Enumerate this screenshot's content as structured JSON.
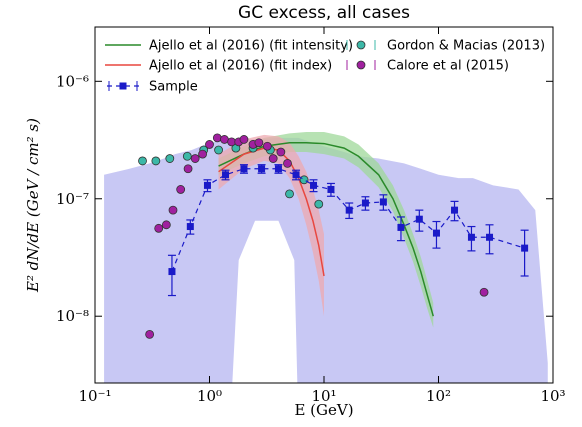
{
  "chart_data": {
    "type": "line",
    "title": "GC excess, all cases",
    "x_label": "E (GeV)",
    "y_label": "E² dN/dE  (GeV / cm² s)",
    "log_x": true,
    "log_y": true,
    "xlim": [
      0.1,
      1000
    ],
    "ylim": [
      2.7e-09,
      2.9e-06
    ],
    "xticks": [
      {
        "value": 0.1,
        "label": "10⁻¹"
      },
      {
        "value": 1,
        "label": "10⁰"
      },
      {
        "value": 10,
        "label": "10¹"
      },
      {
        "value": 100,
        "label": "10²"
      },
      {
        "value": 1000,
        "label": "10³"
      }
    ],
    "yticks": [
      {
        "value": 1e-08,
        "label": "10⁻⁸"
      },
      {
        "value": 1e-07,
        "label": "10⁻⁷"
      },
      {
        "value": 1e-06,
        "label": "10⁻⁶"
      }
    ],
    "legend": "upper left",
    "background_band": {
      "color": "#c8c8f4",
      "x": [
        0.12,
        0.2,
        0.3,
        0.4,
        0.5,
        0.7,
        1,
        1.5,
        1.8,
        2.5,
        4,
        5.5,
        6,
        8,
        10,
        15,
        20,
        30,
        50,
        70,
        100,
        150,
        200,
        300,
        500,
        700,
        900
      ],
      "upper": [
        1.6e-07,
        1.8e-07,
        2e-07,
        2.2e-07,
        2.4e-07,
        2.6e-07,
        3e-07,
        3.2e-07,
        3.2e-07,
        3.2e-07,
        3.3e-07,
        3.3e-07,
        3.3e-07,
        3e-07,
        2.8e-07,
        2.5e-07,
        2.3e-07,
        2.2e-07,
        2e-07,
        1.8e-07,
        1.6e-07,
        1.5e-07,
        1.5e-07,
        1.3e-07,
        1.2e-07,
        8e-08,
        4e-09
      ],
      "lower": [
        1e-09,
        1e-09,
        1e-09,
        1e-09,
        1e-09,
        1e-09,
        1e-09,
        1e-09,
        3e-08,
        6.5e-08,
        6.5e-08,
        3e-08,
        1e-09,
        1e-09,
        1e-09,
        1e-09,
        1e-09,
        1e-09,
        1e-09,
        1e-09,
        1e-09,
        1e-09,
        1e-09,
        1e-09,
        1e-09,
        1e-09,
        1e-09
      ]
    },
    "series": [
      {
        "name": "Ajello et al (2016) (fit intensity)",
        "color": "#2a8a2a",
        "band_color": "#9fd89a",
        "x": [
          1.2,
          2,
          3,
          5,
          7,
          10,
          15,
          20,
          30,
          40,
          50,
          60,
          70,
          80,
          90
        ],
        "values": [
          1.9e-07,
          2.4e-07,
          2.8e-07,
          3e-07,
          3e-07,
          2.95e-07,
          2.7e-07,
          2.3e-07,
          1.6e-07,
          1e-07,
          6e-08,
          3.8e-08,
          2.4e-08,
          1.5e-08,
          1e-08
        ],
        "lower": [
          1.6e-07,
          2e-07,
          2.3e-07,
          2.5e-07,
          2.5e-07,
          2.4e-07,
          2.2e-07,
          1.85e-07,
          1.25e-07,
          7.8e-08,
          4.6e-08,
          2.9e-08,
          1.8e-08,
          1.15e-08,
          8e-09
        ],
        "upper": [
          2.2e-07,
          2.8e-07,
          3.3e-07,
          3.6e-07,
          3.7e-07,
          3.7e-07,
          3.4e-07,
          2.9e-07,
          2e-07,
          1.3e-07,
          8e-08,
          5e-08,
          3.2e-08,
          2e-08,
          1.3e-08
        ]
      },
      {
        "name": "Ajello et al (2016) (fit index)",
        "color": "#e8473f",
        "band_color": "#eeaab0",
        "x": [
          1.2,
          2,
          3,
          4,
          5,
          6,
          7,
          8,
          9,
          10
        ],
        "values": [
          1.7e-07,
          2.4e-07,
          2.7e-07,
          2.6e-07,
          2.1e-07,
          1.5e-07,
          1e-07,
          6.5e-08,
          4e-08,
          2.2e-08
        ],
        "lower": [
          1.2e-07,
          1.8e-07,
          2.1e-07,
          2e-07,
          1.5e-07,
          1e-07,
          6e-08,
          3.5e-08,
          2e-08,
          1e-08
        ],
        "upper": [
          2.4e-07,
          3.2e-07,
          3.5e-07,
          3.4e-07,
          3e-07,
          2.3e-07,
          1.7e-07,
          1.2e-07,
          8e-08,
          5e-08
        ]
      },
      {
        "name": "Gordon & Macias (2013)",
        "color": "#3cb8a8",
        "marker": "circle",
        "x": [
          0.26,
          0.34,
          0.45,
          0.64,
          0.89,
          1.2,
          1.7,
          2.4,
          3.4,
          5.0,
          6.7,
          9.0
        ],
        "values": [
          2.1e-07,
          2.1e-07,
          2.2e-07,
          2.3e-07,
          2.6e-07,
          2.6e-07,
          2.7e-07,
          2.7e-07,
          2.6e-07,
          1.1e-07,
          1.45e-07,
          9e-08
        ]
      },
      {
        "name": "Calore et al (2015)",
        "color": "#a0209f",
        "marker": "circle",
        "x": [
          0.3,
          0.36,
          0.42,
          0.48,
          0.56,
          0.65,
          0.75,
          0.87,
          1.0,
          1.17,
          1.35,
          1.56,
          1.8,
          2.0,
          2.4,
          2.7,
          3.2,
          3.6,
          4.2,
          4.8,
          250
        ],
        "values": [
          7e-09,
          5.6e-08,
          6e-08,
          8e-08,
          1.2e-07,
          1.8e-07,
          2.2e-07,
          2.4e-07,
          2.9e-07,
          3.3e-07,
          3.2e-07,
          3.05e-07,
          3.05e-07,
          3.2e-07,
          2.9e-07,
          3e-07,
          2.8e-07,
          2.2e-07,
          2.5e-07,
          2e-07,
          1.6e-08
        ]
      },
      {
        "name": "Sample",
        "color": "#1a1ac8",
        "marker": "square",
        "x": [
          0.47,
          0.68,
          0.96,
          1.38,
          2.0,
          2.85,
          4.0,
          5.7,
          8.1,
          11.5,
          16.6,
          23,
          33,
          47,
          68,
          96,
          138,
          194,
          279,
          565
        ],
        "values": [
          2.4e-08,
          5.8e-08,
          1.3e-07,
          1.6e-07,
          1.8e-07,
          1.8e-07,
          1.8e-07,
          1.6e-07,
          1.3e-07,
          1.2e-07,
          8e-08,
          9.2e-08,
          9.4e-08,
          5.7e-08,
          6.7e-08,
          5.1e-08,
          8e-08,
          4.7e-08,
          4.7e-08,
          3.8e-08
        ],
        "lower": [
          1.5e-08,
          5e-08,
          1.15e-07,
          1.45e-07,
          1.65e-07,
          1.65e-07,
          1.65e-07,
          1.45e-07,
          1.15e-07,
          1.05e-07,
          6.8e-08,
          8e-08,
          8e-08,
          4.4e-08,
          5.3e-08,
          3.8e-08,
          6.5e-08,
          3.6e-08,
          3.4e-08,
          2.2e-08
        ],
        "upper": [
          3.3e-08,
          6.6e-08,
          1.45e-07,
          1.75e-07,
          1.95e-07,
          1.95e-07,
          1.95e-07,
          1.75e-07,
          1.45e-07,
          1.35e-07,
          9.2e-08,
          1.04e-07,
          1.08e-07,
          7e-08,
          8e-08,
          6.4e-08,
          9.5e-08,
          5.8e-08,
          6e-08,
          5.4e-08
        ]
      }
    ]
  }
}
